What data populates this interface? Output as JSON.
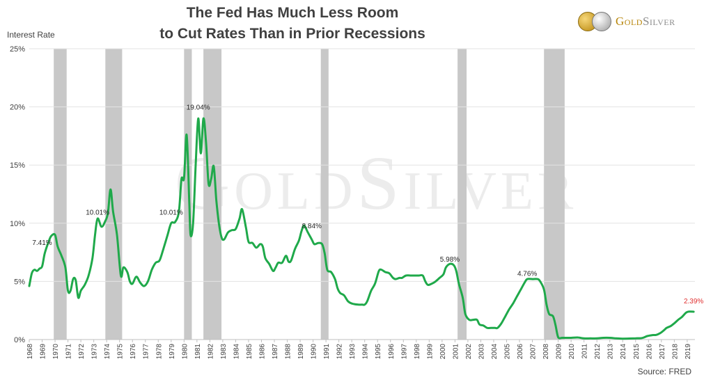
{
  "title_line1": "The Fed Has Much Less Room",
  "title_line2": "to Cut Rates Than in Prior Recessions",
  "source": "Source: FRED",
  "logo": {
    "gold": "Gold",
    "silver": "Silver",
    "watermark": "GoldSilver"
  },
  "colors": {
    "line": "#1fa94a",
    "recession": "#c8c8c8",
    "grid": "#e3e3e3",
    "current_label": "#e03030",
    "axis_text": "#404040"
  },
  "chart_data": {
    "type": "line",
    "ylabel": "Interest Rate",
    "ylim": [
      0,
      25
    ],
    "xlim": [
      1968,
      2019.6
    ],
    "y_ticks": [
      "0%",
      "5%",
      "10%",
      "15%",
      "20%",
      "25%"
    ],
    "x_ticks": [
      "1968",
      "1969",
      "1970",
      "1971",
      "1972",
      "1973",
      "1974",
      "1975",
      "1976",
      "1977",
      "1978",
      "1979",
      "1980",
      "1981",
      "1982",
      "1983",
      "1984",
      "1985",
      "1986",
      "1987",
      "1988",
      "1989",
      "1990",
      "1991",
      "1992",
      "1993",
      "1994",
      "1995",
      "1996",
      "1997",
      "1998",
      "1999",
      "2000",
      "2001",
      "2002",
      "2003",
      "2004",
      "2005",
      "2006",
      "2007",
      "2008",
      "2009",
      "2010",
      "2011",
      "2012",
      "2013",
      "2014",
      "2015",
      "2016",
      "2017",
      "2018",
      "2019"
    ],
    "grid": true,
    "recessions": [
      [
        1969.9,
        1970.9
      ],
      [
        1973.9,
        1975.2
      ],
      [
        1980.0,
        1980.6
      ],
      [
        1981.5,
        1982.9
      ],
      [
        1990.6,
        1991.2
      ],
      [
        2001.2,
        2001.9
      ],
      [
        2007.9,
        2009.5
      ]
    ],
    "series": [
      {
        "values": [
          [
            1968.0,
            4.6
          ],
          [
            1968.2,
            5.7
          ],
          [
            1968.4,
            6.0
          ],
          [
            1968.6,
            5.9
          ],
          [
            1968.8,
            6.1
          ],
          [
            1969.0,
            6.3
          ],
          [
            1969.2,
            7.4
          ],
          [
            1969.5,
            8.4
          ],
          [
            1969.7,
            8.9
          ],
          [
            1970.0,
            9.0
          ],
          [
            1970.2,
            8.0
          ],
          [
            1970.5,
            7.2
          ],
          [
            1970.8,
            6.2
          ],
          [
            1971.0,
            4.2
          ],
          [
            1971.2,
            4.2
          ],
          [
            1971.4,
            5.2
          ],
          [
            1971.6,
            5.1
          ],
          [
            1971.8,
            3.6
          ],
          [
            1972.0,
            4.2
          ],
          [
            1972.3,
            4.7
          ],
          [
            1972.6,
            5.5
          ],
          [
            1972.9,
            7.0
          ],
          [
            1973.1,
            9.0
          ],
          [
            1973.3,
            10.4
          ],
          [
            1973.6,
            9.7
          ],
          [
            1973.9,
            10.2
          ],
          [
            1974.1,
            10.9
          ],
          [
            1974.3,
            12.9
          ],
          [
            1974.5,
            11.0
          ],
          [
            1974.8,
            9.0
          ],
          [
            1975.1,
            5.5
          ],
          [
            1975.3,
            6.2
          ],
          [
            1975.6,
            5.8
          ],
          [
            1975.8,
            5.0
          ],
          [
            1976.0,
            4.8
          ],
          [
            1976.3,
            5.4
          ],
          [
            1976.6,
            4.9
          ],
          [
            1976.9,
            4.6
          ],
          [
            1977.2,
            5.0
          ],
          [
            1977.5,
            6.0
          ],
          [
            1977.8,
            6.6
          ],
          [
            1978.1,
            6.8
          ],
          [
            1978.4,
            7.8
          ],
          [
            1978.7,
            8.9
          ],
          [
            1979.0,
            10.0
          ],
          [
            1979.3,
            10.1
          ],
          [
            1979.6,
            11.0
          ],
          [
            1979.8,
            13.8
          ],
          [
            1980.0,
            13.9
          ],
          [
            1980.2,
            17.6
          ],
          [
            1980.4,
            12.0
          ],
          [
            1980.5,
            9.0
          ],
          [
            1980.7,
            10.0
          ],
          [
            1980.9,
            15.0
          ],
          [
            1981.1,
            19.0
          ],
          [
            1981.3,
            16.0
          ],
          [
            1981.5,
            19.0
          ],
          [
            1981.7,
            17.0
          ],
          [
            1981.9,
            13.4
          ],
          [
            1982.1,
            13.8
          ],
          [
            1982.3,
            14.9
          ],
          [
            1982.5,
            12.0
          ],
          [
            1982.7,
            10.0
          ],
          [
            1982.9,
            8.8
          ],
          [
            1983.1,
            8.6
          ],
          [
            1983.4,
            9.2
          ],
          [
            1983.7,
            9.4
          ],
          [
            1984.0,
            9.5
          ],
          [
            1984.3,
            10.4
          ],
          [
            1984.5,
            11.2
          ],
          [
            1984.8,
            9.6
          ],
          [
            1985.0,
            8.4
          ],
          [
            1985.3,
            8.3
          ],
          [
            1985.6,
            7.9
          ],
          [
            1985.9,
            8.2
          ],
          [
            1986.1,
            8.0
          ],
          [
            1986.3,
            7.0
          ],
          [
            1986.6,
            6.5
          ],
          [
            1986.9,
            5.9
          ],
          [
            1987.1,
            6.2
          ],
          [
            1987.3,
            6.6
          ],
          [
            1987.6,
            6.6
          ],
          [
            1987.9,
            7.2
          ],
          [
            1988.1,
            6.7
          ],
          [
            1988.3,
            6.8
          ],
          [
            1988.6,
            7.8
          ],
          [
            1988.9,
            8.5
          ],
          [
            1989.1,
            9.3
          ],
          [
            1989.3,
            9.8
          ],
          [
            1989.6,
            9.2
          ],
          [
            1989.9,
            8.6
          ],
          [
            1990.1,
            8.2
          ],
          [
            1990.4,
            8.3
          ],
          [
            1990.7,
            8.2
          ],
          [
            1990.9,
            7.4
          ],
          [
            1991.1,
            6.0
          ],
          [
            1991.4,
            5.8
          ],
          [
            1991.7,
            5.2
          ],
          [
            1991.9,
            4.4
          ],
          [
            1992.1,
            4.0
          ],
          [
            1992.4,
            3.8
          ],
          [
            1992.7,
            3.3
          ],
          [
            1993.0,
            3.1
          ],
          [
            1993.5,
            3.0
          ],
          [
            1993.8,
            3.0
          ],
          [
            1994.0,
            3.0
          ],
          [
            1994.2,
            3.3
          ],
          [
            1994.5,
            4.2
          ],
          [
            1994.8,
            4.8
          ],
          [
            1995.1,
            5.9
          ],
          [
            1995.3,
            6.0
          ],
          [
            1995.6,
            5.8
          ],
          [
            1995.9,
            5.7
          ],
          [
            1996.2,
            5.3
          ],
          [
            1996.4,
            5.2
          ],
          [
            1996.7,
            5.3
          ],
          [
            1996.9,
            5.3
          ],
          [
            1997.2,
            5.5
          ],
          [
            1997.6,
            5.5
          ],
          [
            1997.9,
            5.5
          ],
          [
            1998.2,
            5.5
          ],
          [
            1998.5,
            5.5
          ],
          [
            1998.7,
            5.0
          ],
          [
            1998.9,
            4.7
          ],
          [
            1999.2,
            4.8
          ],
          [
            1999.5,
            5.0
          ],
          [
            1999.8,
            5.3
          ],
          [
            2000.1,
            5.6
          ],
          [
            2000.3,
            6.2
          ],
          [
            2000.6,
            6.5
          ],
          [
            2000.9,
            6.4
          ],
          [
            2001.1,
            5.9
          ],
          [
            2001.3,
            4.8
          ],
          [
            2001.6,
            3.6
          ],
          [
            2001.8,
            2.2
          ],
          [
            2002.1,
            1.7
          ],
          [
            2002.4,
            1.7
          ],
          [
            2002.7,
            1.7
          ],
          [
            2002.9,
            1.3
          ],
          [
            2003.2,
            1.2
          ],
          [
            2003.5,
            1.0
          ],
          [
            2003.8,
            1.0
          ],
          [
            2004.1,
            1.0
          ],
          [
            2004.3,
            1.0
          ],
          [
            2004.6,
            1.4
          ],
          [
            2004.9,
            2.0
          ],
          [
            2005.2,
            2.6
          ],
          [
            2005.5,
            3.1
          ],
          [
            2005.8,
            3.7
          ],
          [
            2006.1,
            4.3
          ],
          [
            2006.4,
            4.9
          ],
          [
            2006.6,
            5.2
          ],
          [
            2007.0,
            5.2
          ],
          [
            2007.4,
            5.2
          ],
          [
            2007.6,
            5.0
          ],
          [
            2007.9,
            4.3
          ],
          [
            2008.1,
            3.0
          ],
          [
            2008.3,
            2.2
          ],
          [
            2008.6,
            2.0
          ],
          [
            2008.8,
            1.2
          ],
          [
            2009.0,
            0.2
          ],
          [
            2009.3,
            0.15
          ],
          [
            2009.6,
            0.15
          ],
          [
            2010.0,
            0.15
          ],
          [
            2010.5,
            0.18
          ],
          [
            2011.0,
            0.1
          ],
          [
            2011.5,
            0.1
          ],
          [
            2012.0,
            0.1
          ],
          [
            2012.5,
            0.15
          ],
          [
            2013.0,
            0.15
          ],
          [
            2013.5,
            0.1
          ],
          [
            2014.0,
            0.08
          ],
          [
            2014.5,
            0.09
          ],
          [
            2015.0,
            0.11
          ],
          [
            2015.5,
            0.13
          ],
          [
            2015.9,
            0.3
          ],
          [
            2016.3,
            0.38
          ],
          [
            2016.6,
            0.4
          ],
          [
            2016.9,
            0.55
          ],
          [
            2017.2,
            0.8
          ],
          [
            2017.4,
            1.0
          ],
          [
            2017.7,
            1.15
          ],
          [
            2018.0,
            1.4
          ],
          [
            2018.3,
            1.7
          ],
          [
            2018.6,
            1.95
          ],
          [
            2018.9,
            2.3
          ],
          [
            2019.1,
            2.4
          ],
          [
            2019.5,
            2.39
          ]
        ]
      }
    ],
    "annotations": [
      {
        "label": "7.41%",
        "x": 1969.0,
        "y": 7.41
      },
      {
        "label": "10.01%",
        "x": 1973.3,
        "y": 10.01
      },
      {
        "label": "10.01%",
        "x": 1979.0,
        "y": 10.01
      },
      {
        "label": "19.04%",
        "x": 1981.1,
        "y": 19.04
      },
      {
        "label": "8.84%",
        "x": 1989.9,
        "y": 8.84
      },
      {
        "label": "5.98%",
        "x": 2000.6,
        "y": 5.98
      },
      {
        "label": "4.76%",
        "x": 2006.6,
        "y": 4.76
      },
      {
        "label": "2.39%",
        "x": 2019.5,
        "y": 2.39,
        "highlight": true
      }
    ]
  }
}
